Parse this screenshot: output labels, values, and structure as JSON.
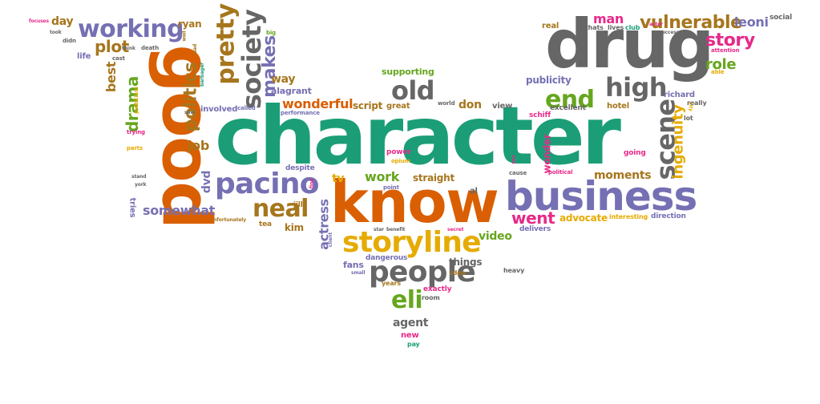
{
  "title": "Word cloud",
  "palette": {
    "teal": "#1b9e77",
    "orange": "#d95f02",
    "purple": "#7570b3",
    "pink": "#e7298a",
    "green": "#66a61e",
    "gold": "#e6ab02",
    "brown": "#a6761d",
    "gray": "#666666"
  },
  "words": [
    {
      "text": "character",
      "color": "teal",
      "weight": 10
    },
    {
      "text": "drug",
      "color": "gray",
      "weight": 8
    },
    {
      "text": "good",
      "color": "orange",
      "weight": 8
    },
    {
      "text": "know",
      "color": "orange",
      "weight": 7
    },
    {
      "text": "business",
      "color": "purple",
      "weight": 6
    },
    {
      "text": "storyline",
      "color": "gold",
      "weight": 4
    },
    {
      "text": "pacino",
      "color": "purple",
      "weight": 4
    },
    {
      "text": "people",
      "color": "gray",
      "weight": 4
    },
    {
      "text": "society",
      "color": "gray",
      "weight": 4
    },
    {
      "text": "pretty",
      "color": "brown",
      "weight": 4
    },
    {
      "text": "scene",
      "color": "gray",
      "weight": 4
    },
    {
      "text": "high",
      "color": "gray",
      "weight": 4
    },
    {
      "text": "old",
      "color": "gray",
      "weight": 4
    },
    {
      "text": "end",
      "color": "green",
      "weight": 4
    },
    {
      "text": "working",
      "color": "purple",
      "weight": 4
    },
    {
      "text": "neal",
      "color": "brown",
      "weight": 3
    },
    {
      "text": "eli",
      "color": "green",
      "weight": 3
    },
    {
      "text": "vulnerable",
      "color": "brown",
      "weight": 3
    },
    {
      "text": "politics",
      "color": "brown",
      "weight": 3
    },
    {
      "text": "makes",
      "color": "purple",
      "weight": 3
    },
    {
      "text": "story",
      "color": "pink",
      "weight": 3
    },
    {
      "text": "plot",
      "color": "brown",
      "weight": 3
    },
    {
      "text": "drama",
      "color": "green",
      "weight": 2
    },
    {
      "text": "ingenuity",
      "color": "gold",
      "weight": 2
    },
    {
      "text": "role",
      "color": "green",
      "weight": 2
    },
    {
      "text": "went",
      "color": "pink",
      "weight": 2
    },
    {
      "text": "wonderful",
      "color": "orange",
      "weight": 2
    },
    {
      "text": "work",
      "color": "green",
      "weight": 2
    },
    {
      "text": "somewhat",
      "color": "purple",
      "weight": 2
    },
    {
      "text": "actress",
      "color": "purple",
      "weight": 2
    },
    {
      "text": "job",
      "color": "brown",
      "weight": 2
    },
    {
      "text": "man",
      "color": "pink",
      "weight": 2
    },
    {
      "text": "day",
      "color": "brown",
      "weight": 2
    },
    {
      "text": "leoni",
      "color": "purple",
      "weight": 2
    },
    {
      "text": "best",
      "color": "brown",
      "weight": 2
    },
    {
      "text": "video",
      "color": "green",
      "weight": 2
    },
    {
      "text": "moments",
      "color": "brown",
      "weight": 2
    },
    {
      "text": "way",
      "color": "brown",
      "weight": 2
    },
    {
      "text": "don",
      "color": "brown",
      "weight": 2
    },
    {
      "text": "agent",
      "color": "gray",
      "weight": 2
    },
    {
      "text": "dvd",
      "color": "purple",
      "weight": 2
    },
    {
      "text": "advocate",
      "color": "gold",
      "weight": 2
    },
    {
      "text": "ryan",
      "color": "brown",
      "weight": 2
    },
    {
      "text": "tv",
      "color": "gold",
      "weight": 2
    },
    {
      "text": "kim",
      "color": "brown",
      "weight": 2
    },
    {
      "text": "publicity",
      "color": "purple",
      "weight": 2
    },
    {
      "text": "things",
      "color": "gray",
      "weight": 2
    },
    {
      "text": "script",
      "color": "brown",
      "weight": 2
    },
    {
      "text": "straight",
      "color": "brown",
      "weight": 2
    },
    {
      "text": "wonder",
      "color": "pink",
      "weight": 2
    },
    {
      "text": "alagrant",
      "color": "purple",
      "weight": 1
    },
    {
      "text": "supporting",
      "color": "green",
      "weight": 1
    },
    {
      "text": "richard",
      "color": "purple",
      "weight": 1
    },
    {
      "text": "life",
      "color": "purple",
      "weight": 1
    },
    {
      "text": "tries",
      "color": "purple",
      "weight": 1
    },
    {
      "text": "fans",
      "color": "purple",
      "weight": 1
    },
    {
      "text": "great",
      "color": "brown",
      "weight": 1
    },
    {
      "text": "real",
      "color": "brown",
      "weight": 1
    },
    {
      "text": "hotel",
      "color": "brown",
      "weight": 1
    },
    {
      "text": "view",
      "color": "gray",
      "weight": 1
    },
    {
      "text": "involved",
      "color": "purple",
      "weight": 1
    },
    {
      "text": "direction",
      "color": "purple",
      "weight": 1
    },
    {
      "text": "delivers",
      "color": "purple",
      "weight": 1
    },
    {
      "text": "jill",
      "color": "brown",
      "weight": 1
    },
    {
      "text": "tea",
      "color": "brown",
      "weight": 1
    },
    {
      "text": "al",
      "color": "gray",
      "weight": 1
    },
    {
      "text": "lot",
      "color": "gray",
      "weight": 1
    },
    {
      "text": "dangerous",
      "color": "purple",
      "weight": 1
    },
    {
      "text": "exactly",
      "color": "pink",
      "weight": 1
    },
    {
      "text": "years",
      "color": "brown",
      "weight": 1
    },
    {
      "text": "room",
      "color": "gray",
      "weight": 1
    },
    {
      "text": "idea",
      "color": "brown",
      "weight": 1
    },
    {
      "text": "new",
      "color": "pink",
      "weight": 1
    },
    {
      "text": "pay",
      "color": "teal",
      "weight": 1
    },
    {
      "text": "social",
      "color": "gray",
      "weight": 1
    },
    {
      "text": "schiff",
      "color": "pink",
      "weight": 1
    },
    {
      "text": "excellent",
      "color": "gray",
      "weight": 1
    },
    {
      "text": "despite",
      "color": "purple",
      "weight": 1
    },
    {
      "text": "power",
      "color": "pink",
      "weight": 1
    },
    {
      "text": "opium",
      "color": "gold",
      "weight": 1
    },
    {
      "text": "point",
      "color": "purple",
      "weight": 1
    },
    {
      "text": "heavy",
      "color": "gray",
      "weight": 1
    },
    {
      "text": "going",
      "color": "pink",
      "weight": 1
    },
    {
      "text": "interesting",
      "color": "gold",
      "weight": 1
    },
    {
      "text": "attention",
      "color": "pink",
      "weight": 1
    },
    {
      "text": "able",
      "color": "gold",
      "weight": 1
    },
    {
      "text": "really",
      "color": "gray",
      "weight": 1
    },
    {
      "text": "thats",
      "color": "gray",
      "weight": 1
    },
    {
      "text": "lives",
      "color": "gray",
      "weight": 1
    },
    {
      "text": "club",
      "color": "teal",
      "weight": 1
    },
    {
      "text": "performance",
      "color": "purple",
      "weight": 1
    },
    {
      "text": "world",
      "color": "gray",
      "weight": 1
    },
    {
      "text": "called",
      "color": "purple",
      "weight": 1
    },
    {
      "text": "big",
      "color": "green",
      "weight": 1
    },
    {
      "text": "cast",
      "color": "gray",
      "weight": 1
    },
    {
      "text": "death",
      "color": "gray",
      "weight": 1
    },
    {
      "text": "didn",
      "color": "gray",
      "weight": 1
    },
    {
      "text": "took",
      "color": "gray",
      "weight": 1
    },
    {
      "text": "focuses",
      "color": "pink",
      "weight": 1
    },
    {
      "text": "think",
      "color": "gray",
      "weight": 1
    },
    {
      "text": "parts",
      "color": "gold",
      "weight": 1
    },
    {
      "text": "stand",
      "color": "gray",
      "weight": 1
    },
    {
      "text": "york",
      "color": "gray",
      "weight": 1
    },
    {
      "text": "trying",
      "color": "pink",
      "weight": 1
    },
    {
      "text": "politicians",
      "color": "gold",
      "weight": 1
    },
    {
      "text": "saw",
      "color": "gray",
      "weight": 1
    },
    {
      "text": "bad",
      "color": "brown",
      "weight": 1
    },
    {
      "text": "wall",
      "color": "brown",
      "weight": 1
    },
    {
      "text": "barbager",
      "color": "teal",
      "weight": 1
    },
    {
      "text": "fine",
      "color": "pink",
      "weight": 1
    },
    {
      "text": "unfortunately",
      "color": "brown",
      "weight": 1
    },
    {
      "text": "star",
      "color": "gray",
      "weight": 1
    },
    {
      "text": "benefit",
      "color": "gray",
      "weight": 1
    },
    {
      "text": "client",
      "color": "purple",
      "weight": 1
    },
    {
      "text": "small",
      "color": "purple",
      "weight": 1
    },
    {
      "text": "secret",
      "color": "pink",
      "weight": 1
    },
    {
      "text": "cause",
      "color": "gray",
      "weight": 1
    },
    {
      "text": "sex",
      "color": "pink",
      "weight": 1
    },
    {
      "text": "political",
      "color": "pink",
      "weight": 1
    },
    {
      "text": "actor",
      "color": "pink",
      "weight": 1
    },
    {
      "text": "success",
      "color": "gray",
      "weight": 1
    },
    {
      "text": "city",
      "color": "gold",
      "weight": 1
    }
  ]
}
